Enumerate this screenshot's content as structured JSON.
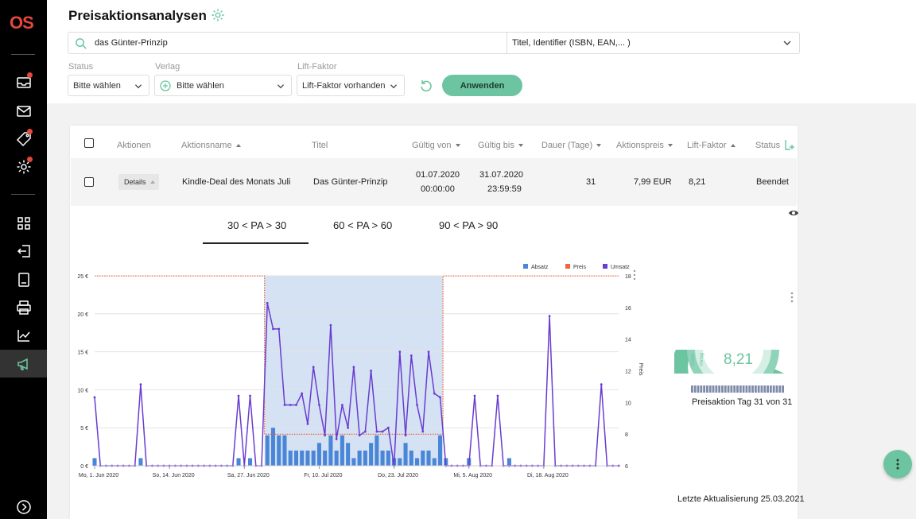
{
  "app": {
    "logo": "OS"
  },
  "header": {
    "title": "Preisaktionsanalysen"
  },
  "search": {
    "value": "das Günter-Prinzip",
    "type_select": "Titel, Identifier (ISBN, EAN,... )"
  },
  "filters": {
    "status": {
      "label": "Status",
      "value": "Bitte wählen"
    },
    "verlag": {
      "label": "Verlag",
      "value": "Bitte wählen"
    },
    "lift": {
      "label": "Lift-Faktor",
      "value": "Lift-Faktor vorhanden"
    },
    "apply_label": "Anwenden"
  },
  "table": {
    "headers": {
      "aktionen": "Aktionen",
      "aktionsname": "Aktionsname",
      "titel": "Titel",
      "gueltig_von": "Gültig von",
      "gueltig_bis": "Gültig bis",
      "dauer": "Dauer (Tage)",
      "aktionspreis": "Aktionspreis",
      "lift_faktor": "Lift-Faktor",
      "status": "Status"
    },
    "row": {
      "details_label": "Details",
      "aktionsname": "Kindle-Deal des Monats Juli",
      "titel": "Das Günter-Prinzip",
      "von_date": "01.07.2020",
      "von_time": "00:00:00",
      "bis_date": "31.07.2020",
      "bis_time": "23:59:59",
      "dauer": "31",
      "aktionspreis": "7,99 EUR",
      "lift_faktor": "8,21",
      "status": "Beendet"
    }
  },
  "tabs": [
    {
      "label": "30 < PA > 30",
      "active": true
    },
    {
      "label": "60 < PA > 60",
      "active": false
    },
    {
      "label": "90 < PA > 90",
      "active": false
    }
  ],
  "chart_data": {
    "type": "bar",
    "legend": [
      "Absatz",
      "Preis",
      "Umsatz"
    ],
    "legend_position": "top-right",
    "colors": {
      "absatz": "#4a86d8",
      "preis": "#f0663a",
      "umsatz": "#6a3cd0",
      "highlight": "#d4e2f4"
    },
    "y_left_ticks": [
      "0 €",
      "5 €",
      "10 €",
      "15 €",
      "20 €",
      "25 €"
    ],
    "y_left_range": [
      0,
      25
    ],
    "y_right_label": "Preis",
    "y_right_ticks": [
      "6",
      "8",
      "10",
      "12",
      "14",
      "16",
      "18"
    ],
    "y_right_range": [
      6,
      18
    ],
    "x_tick_labels": [
      "Mo, 1. Jun 2020",
      "So, 14. Jun 2020",
      "Sa, 27. Jun 2020",
      "Fr, 10. Jul 2020",
      "Do, 23. Jul 2020",
      "Mi, 5. Aug 2020",
      "Di, 18. Aug 2020"
    ],
    "x_tick_index": [
      0,
      13,
      26,
      39,
      52,
      65,
      78
    ],
    "num_days": 92,
    "highlight_range": [
      30,
      60
    ],
    "absatz": [
      1,
      0,
      0,
      0,
      0,
      0,
      0,
      0,
      1,
      0,
      0,
      0,
      0,
      0,
      0,
      0,
      0,
      0,
      0,
      0,
      0,
      0,
      0,
      0,
      0,
      1,
      0,
      1,
      0,
      0,
      4,
      5,
      4,
      4,
      2,
      2,
      2,
      2,
      2,
      3,
      2,
      4,
      2,
      4,
      3,
      1,
      2,
      2,
      3,
      4,
      2,
      2,
      1,
      1,
      3,
      2,
      1,
      2,
      2,
      1,
      4,
      1,
      0,
      0,
      0,
      1,
      0,
      0,
      0,
      0,
      0,
      0,
      1,
      0,
      0,
      0,
      0,
      0,
      0,
      0,
      0,
      0,
      0,
      0,
      0,
      0,
      0,
      0,
      0,
      0,
      0,
      0
    ],
    "umsatz": [
      9,
      0,
      0,
      0,
      0,
      0,
      0,
      0,
      10.7,
      0,
      0,
      0,
      0,
      0,
      0,
      0,
      0,
      0,
      0,
      0,
      0,
      0,
      0,
      0,
      0,
      9.2,
      0,
      9.2,
      0,
      0,
      21.4,
      18,
      18,
      8,
      8,
      8,
      9.5,
      5.5,
      13,
      8,
      4,
      18.5,
      3.5,
      8,
      5,
      13,
      4,
      4.5,
      12.5,
      4.5,
      4.5,
      5,
      0,
      15,
      4,
      14.5,
      8,
      4.5,
      15,
      9.5,
      9,
      0,
      0,
      0,
      0,
      0,
      9.2,
      0,
      0,
      0,
      9.2,
      0,
      0,
      0,
      0,
      0,
      0,
      0,
      0,
      19.7,
      0,
      0,
      0,
      0,
      0,
      0,
      0,
      0,
      10.7,
      0,
      0,
      0
    ],
    "preis": {
      "regular": 17.99,
      "promo": 7.99,
      "promo_from_index": 30,
      "promo_to_index": 60
    }
  },
  "gauge": {
    "value": "8,21",
    "axis_labels": [
      "Titel",
      "Genre",
      "Verlag"
    ],
    "caption": "Preisaktion Tag 31 von 31",
    "progress_fraction": 1.0
  },
  "footer": {
    "last_update": "Letzte Aktualisierung 25.03.2021"
  }
}
